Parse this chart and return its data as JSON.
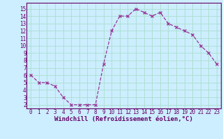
{
  "x": [
    0,
    1,
    2,
    3,
    4,
    5,
    6,
    7,
    8,
    9,
    10,
    11,
    12,
    13,
    14,
    15,
    16,
    17,
    18,
    19,
    20,
    21,
    22,
    23
  ],
  "y": [
    6,
    5,
    5,
    4.5,
    3,
    2,
    2,
    2,
    2,
    7.5,
    12,
    14,
    14,
    15,
    14.5,
    14,
    14.5,
    13,
    12.5,
    12,
    11.5,
    10,
    9,
    7.5
  ],
  "line_color": "#993399",
  "marker": "x",
  "marker_color": "#993399",
  "bg_color": "#cceeff",
  "grid_color": "#aaddcc",
  "xlabel": "Windchill (Refroidissement éolien,°C)",
  "xlim": [
    -0.5,
    23.5
  ],
  "ylim": [
    1.5,
    15.8
  ],
  "xticks": [
    0,
    1,
    2,
    3,
    4,
    5,
    6,
    7,
    8,
    9,
    10,
    11,
    12,
    13,
    14,
    15,
    16,
    17,
    18,
    19,
    20,
    21,
    22,
    23
  ],
  "yticks": [
    2,
    3,
    4,
    5,
    6,
    7,
    8,
    9,
    10,
    11,
    12,
    13,
    14,
    15
  ],
  "xlabel_fontsize": 6.5,
  "tick_fontsize": 5.5,
  "axis_label_color": "#660066",
  "tick_color": "#660066",
  "spine_color": "#660066",
  "line_width": 0.9,
  "marker_size": 2.5
}
